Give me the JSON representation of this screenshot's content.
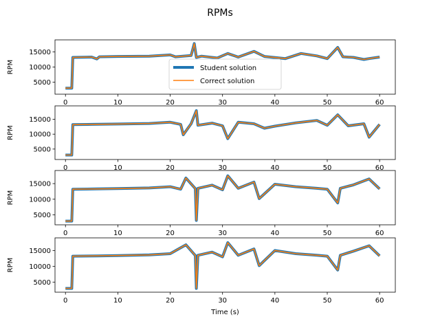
{
  "title": "RPMs",
  "legend": {
    "placement": "center (first subplot)",
    "entries": [
      "Student solution",
      "Correct solution"
    ]
  },
  "colors": {
    "student": "#1f77b4",
    "correct": "#ff7f0e"
  },
  "chart_data": [
    {
      "type": "line",
      "ylabel": "RPM",
      "xlabel": "",
      "xlim": [
        -2.0,
        63.0
      ],
      "ylim": [
        1000,
        19000
      ],
      "xticks": [
        0,
        10,
        20,
        30,
        40,
        50,
        60
      ],
      "yticks": [
        5000,
        10000,
        15000
      ],
      "grid": false,
      "legend": true,
      "series": [
        {
          "name": "Student solution",
          "style": "thick"
        },
        {
          "name": "Correct solution",
          "style": "thin"
        }
      ],
      "x": [
        0,
        1.2,
        1.4,
        5,
        6,
        6.5,
        10,
        16,
        20,
        21,
        24,
        24.6,
        25,
        26,
        29,
        31,
        33,
        36,
        38,
        42,
        45,
        48,
        50,
        52,
        53,
        55,
        57,
        58,
        60
      ],
      "y": [
        3000,
        3000,
        13200,
        13300,
        12700,
        13400,
        13500,
        13600,
        14000,
        13400,
        13800,
        17800,
        13200,
        13600,
        13000,
        14500,
        13300,
        15200,
        13500,
        12800,
        14500,
        13700,
        12800,
        16500,
        13400,
        13200,
        12500,
        12800,
        13300
      ]
    },
    {
      "type": "line",
      "ylabel": "RPM",
      "xlabel": "",
      "xlim": [
        -2.0,
        63.0
      ],
      "ylim": [
        1500,
        19500
      ],
      "xticks": [
        0,
        10,
        20,
        30,
        40,
        50,
        60
      ],
      "yticks": [
        5000,
        10000,
        15000
      ],
      "grid": false,
      "series": [
        {
          "name": "Student solution",
          "style": "thick"
        },
        {
          "name": "Correct solution",
          "style": "thin"
        }
      ],
      "x": [
        0,
        1.2,
        1.4,
        5,
        10,
        16,
        20,
        22,
        22.5,
        24,
        25,
        25.3,
        28,
        30,
        31,
        33,
        36,
        38,
        40,
        44,
        48,
        50,
        52,
        54,
        57,
        58,
        60
      ],
      "y": [
        3000,
        3000,
        13200,
        13300,
        13400,
        13600,
        14000,
        13300,
        9800,
        13500,
        17900,
        13000,
        13700,
        12800,
        8500,
        14000,
        13500,
        12000,
        12700,
        13800,
        14600,
        13000,
        16500,
        12800,
        13500,
        9000,
        13300
      ]
    },
    {
      "type": "line",
      "ylabel": "RPM",
      "xlabel": "",
      "xlim": [
        -2.0,
        63.0
      ],
      "ylim": [
        1800,
        19200
      ],
      "xticks": [
        0,
        10,
        20,
        30,
        40,
        50,
        60
      ],
      "yticks": [
        5000,
        10000,
        15000
      ],
      "grid": false,
      "series": [
        {
          "name": "Student solution",
          "style": "thick"
        },
        {
          "name": "Correct solution",
          "style": "thin"
        }
      ],
      "x": [
        0,
        1.2,
        1.4,
        6,
        10,
        16,
        20,
        22,
        23,
        24.8,
        25,
        25.3,
        28,
        30,
        31,
        33,
        36,
        37,
        40,
        44,
        48,
        50,
        52,
        52.5,
        55,
        58,
        60
      ],
      "y": [
        3000,
        3000,
        13200,
        13300,
        13400,
        13600,
        14000,
        13200,
        16800,
        13400,
        3200,
        13500,
        14500,
        13000,
        17500,
        13500,
        15500,
        10200,
        14800,
        14000,
        13500,
        13200,
        8800,
        13500,
        14600,
        16500,
        13300
      ]
    },
    {
      "type": "line",
      "ylabel": "RPM",
      "xlabel": "Time (s)",
      "xlim": [
        -2.0,
        63.0
      ],
      "ylim": [
        1800,
        19000
      ],
      "xticks": [
        0,
        10,
        20,
        30,
        40,
        50,
        60
      ],
      "yticks": [
        5000,
        10000,
        15000
      ],
      "grid": false,
      "series": [
        {
          "name": "Student solution",
          "style": "thick"
        },
        {
          "name": "Correct solution",
          "style": "thin"
        }
      ],
      "x": [
        0,
        1.2,
        1.4,
        6,
        10,
        16,
        20,
        23,
        24.8,
        25,
        25.3,
        28,
        30,
        31,
        33,
        36,
        37,
        40,
        44,
        48,
        50,
        52,
        52.5,
        55,
        58,
        60
      ],
      "y": [
        3000,
        3000,
        13200,
        13300,
        13400,
        13600,
        14000,
        16800,
        13400,
        3000,
        13500,
        14500,
        13000,
        17500,
        13500,
        15500,
        10200,
        15000,
        14000,
        13500,
        13200,
        8800,
        13500,
        14800,
        16500,
        13300
      ]
    }
  ]
}
